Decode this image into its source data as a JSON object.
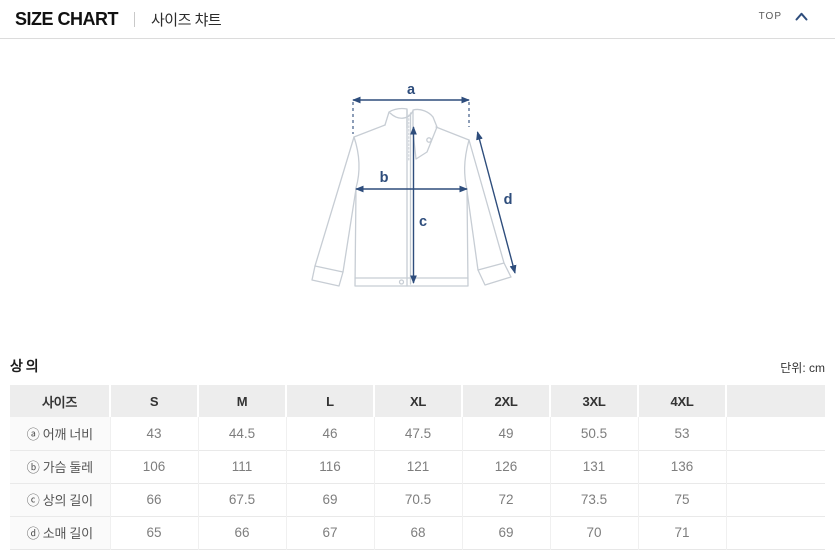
{
  "header": {
    "title_en": "SIZE CHART",
    "title_ko": "사이즈 챠트",
    "top_label": "TOP"
  },
  "diagram": {
    "garment": "jacket-front-line-drawing",
    "measure_labels": {
      "a": "a",
      "b": "b",
      "c": "c",
      "d": "d"
    }
  },
  "section": {
    "title": "상 의",
    "unit": "단위: cm"
  },
  "table": {
    "columns": [
      "사이즈",
      "S",
      "M",
      "L",
      "XL",
      "2XL",
      "3XL",
      "4XL",
      ""
    ],
    "rows": [
      {
        "label": "ⓐ 어깨 너비",
        "values": [
          "43",
          "44.5",
          "46",
          "47.5",
          "49",
          "50.5",
          "53",
          ""
        ]
      },
      {
        "label": "ⓑ 가슴 둘레",
        "values": [
          "106",
          "111",
          "116",
          "121",
          "126",
          "131",
          "136",
          ""
        ]
      },
      {
        "label": "ⓒ 상의 길이",
        "values": [
          "66",
          "67.5",
          "69",
          "70.5",
          "72",
          "73.5",
          "75",
          ""
        ]
      },
      {
        "label": "ⓓ 소매 길이",
        "values": [
          "65",
          "66",
          "67",
          "68",
          "69",
          "70",
          "71",
          ""
        ]
      }
    ]
  },
  "colors": {
    "accent_navy": "#2e4d7c",
    "garment_line": "#c7cdd4",
    "table_header_bg": "#ededed",
    "table_border": "#e9e9e9"
  }
}
